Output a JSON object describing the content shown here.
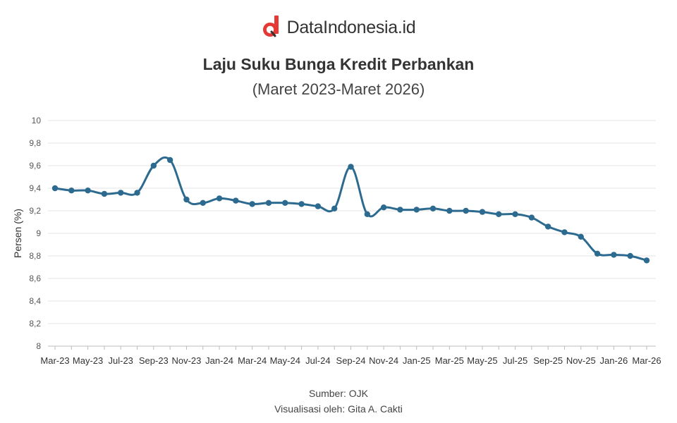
{
  "brand": {
    "name": "DataIndonesia.id",
    "logo_letter": "d",
    "logo_color": "#e53935"
  },
  "title": "Laju Suku Bunga Kredit Perbankan",
  "subtitle": "(Maret 2023-Maret 2026)",
  "footer": {
    "source": "Sumber: OJK",
    "credit": "Visualisasi oleh: Gita A. Cakti"
  },
  "chart_data": {
    "type": "line",
    "ylabel": "Persen (%)",
    "xlabel": "",
    "ylim": [
      8,
      10
    ],
    "yticks": [
      "8",
      "8,2",
      "8,4",
      "8,6",
      "8,8",
      "9",
      "9,2",
      "9,4",
      "9,6",
      "9,8",
      "10"
    ],
    "grid": true,
    "line_color": "#2c6a8f",
    "x": [
      "Mar-23",
      "Apr-23",
      "May-23",
      "Jun-23",
      "Jul-23",
      "Aug-23",
      "Sep-23",
      "Oct-23",
      "Nov-23",
      "Dec-23",
      "Jan-24",
      "Feb-24",
      "Mar-24",
      "Apr-24",
      "May-24",
      "Jun-24",
      "Jul-24",
      "Aug-24",
      "Sep-24",
      "Oct-24",
      "Nov-24",
      "Dec-24",
      "Jan-25",
      "Feb-25",
      "Mar-25",
      "Apr-25",
      "May-25",
      "Jun-25",
      "Jul-25",
      "Aug-25",
      "Sep-25",
      "Oct-25",
      "Nov-25",
      "Dec-25",
      "Jan-26",
      "Feb-26",
      "Mar-26"
    ],
    "xtick_labels": [
      "Mar-23",
      "May-23",
      "Jul-23",
      "Sep-23",
      "Nov-23",
      "Jan-24",
      "Mar-24",
      "May-24",
      "Jul-24",
      "Sep-24",
      "Nov-24",
      "Jan-25",
      "Mar-25",
      "May-25",
      "Jul-25",
      "Sep-25",
      "Nov-25",
      "Jan-26",
      "Mar-26"
    ],
    "series": [
      {
        "values": [
          9.4,
          9.38,
          9.38,
          9.35,
          9.36,
          9.36,
          9.6,
          9.65,
          9.3,
          9.27,
          9.31,
          9.29,
          9.26,
          9.27,
          9.27,
          9.26,
          9.24,
          9.22,
          9.59,
          9.17,
          9.23,
          9.21,
          9.21,
          9.22,
          9.2,
          9.2,
          9.19,
          9.17,
          9.17,
          9.14,
          9.06,
          9.01,
          8.97,
          8.82,
          8.81,
          8.8,
          8.76
        ]
      }
    ]
  }
}
